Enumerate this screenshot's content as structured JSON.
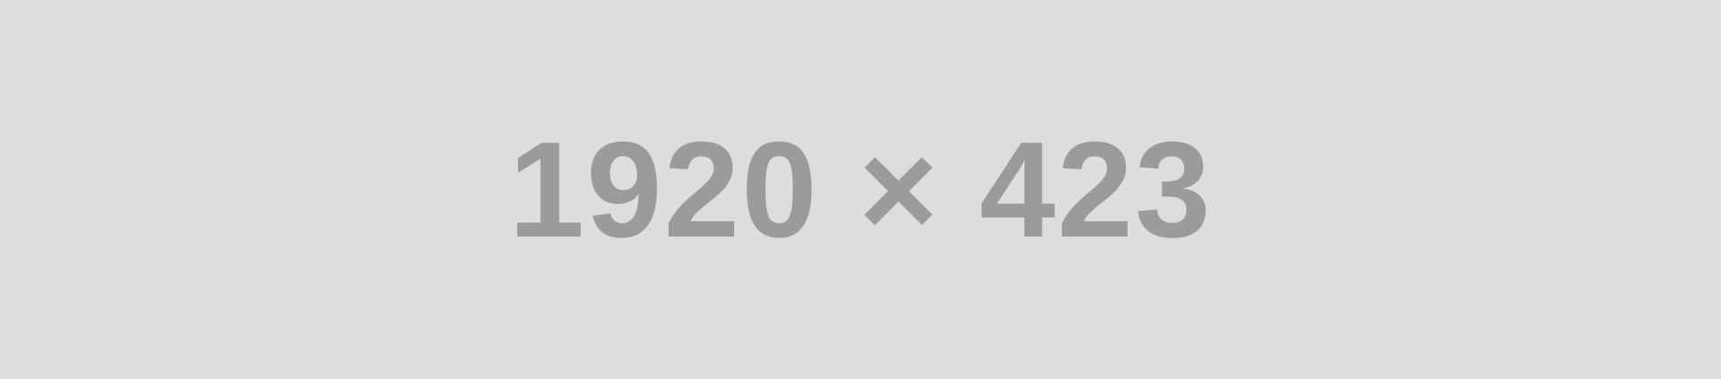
{
  "placeholder": {
    "label": "1920 × 423",
    "background_color": "#dddddd",
    "text_color": "#9b9b9b"
  }
}
